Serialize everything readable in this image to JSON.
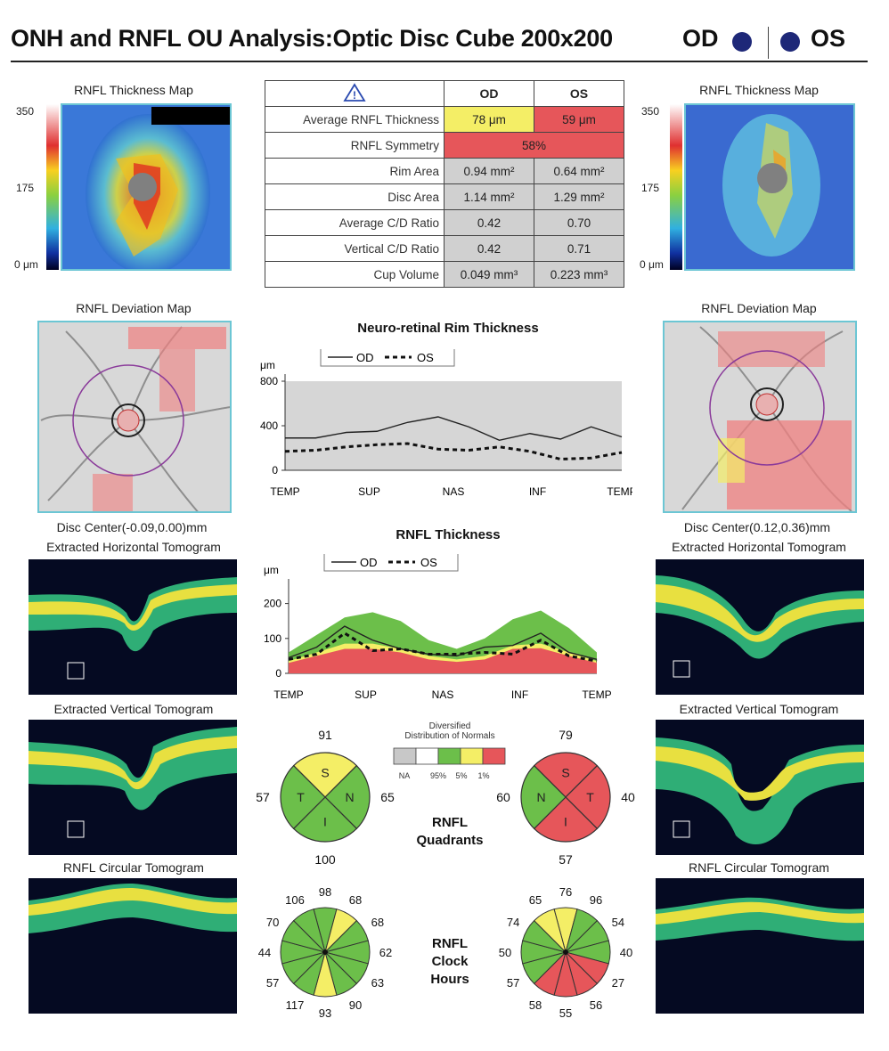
{
  "header": {
    "title": "ONH and RNFL OU Analysis:Optic Disc Cube 200x200",
    "od": "OD",
    "os": "OS"
  },
  "thickness_map": {
    "caption": "RNFL Thickness Map",
    "scale_max": "350",
    "scale_mid": "175",
    "scale_min": "0 μm",
    "scale_min_os": "0 μm"
  },
  "metrics": {
    "col_od": "OD",
    "col_os": "OS",
    "rows": [
      {
        "label": "Average RNFL Thickness",
        "od": "78 μm",
        "os": "59 μm"
      },
      {
        "label": "RNFL Symmetry",
        "merged": "58%"
      },
      {
        "label": "Rim Area",
        "od": "0.94 mm²",
        "os": "0.64 mm²"
      },
      {
        "label": "Disc Area",
        "od": "1.14 mm²",
        "os": "1.29 mm²"
      },
      {
        "label": "Average C/D Ratio",
        "od": "0.42",
        "os": "0.70"
      },
      {
        "label": "Vertical C/D Ratio",
        "od": "0.42",
        "os": "0.71"
      },
      {
        "label": "Cup Volume",
        "od": "0.049 mm³",
        "os": "0.223 mm³"
      }
    ],
    "colors": {
      "yellow": "#f4ee66",
      "red": "#e6565a",
      "gray": "#d0d0d0"
    }
  },
  "deviation_map": {
    "caption": "RNFL Deviation Map",
    "od_center": "Disc Center(-0.09,0.00)mm",
    "os_center": "Disc Center(0.12,0.36)mm"
  },
  "tomograms": {
    "horizontal": "Extracted Horizontal Tomogram",
    "vertical": "Extracted Vertical Tomogram",
    "circular": "RNFL Circular Tomogram"
  },
  "chart_data": [
    {
      "type": "line",
      "title": "Neuro-retinal Rim Thickness",
      "ylabel": "μm",
      "ylim": [
        0,
        800
      ],
      "yticks": [
        "800",
        "400",
        "0"
      ],
      "xticks": [
        "TEMP",
        "SUP",
        "NAS",
        "INF",
        "TEMP"
      ],
      "legend": {
        "od": "OD",
        "os": "OS"
      },
      "series": [
        {
          "name": "OD",
          "values": [
            290,
            290,
            340,
            350,
            430,
            480,
            390,
            270,
            330,
            280,
            390,
            300
          ]
        },
        {
          "name": "OS",
          "values": [
            170,
            180,
            210,
            230,
            240,
            190,
            180,
            210,
            170,
            100,
            110,
            160
          ]
        }
      ]
    },
    {
      "type": "area",
      "title": "RNFL Thickness",
      "ylabel": "μm",
      "ylim": [
        0,
        250
      ],
      "yticks": [
        "200",
        "100",
        "0"
      ],
      "xticks": [
        "TEMP",
        "SUP",
        "NAS",
        "INF",
        "TEMP"
      ],
      "legend": {
        "od": "OD",
        "os": "OS"
      },
      "normative": {
        "p95": [
          60,
          110,
          160,
          175,
          150,
          95,
          70,
          100,
          155,
          180,
          130,
          60
        ],
        "p5": [
          35,
          60,
          85,
          85,
          70,
          50,
          40,
          50,
          80,
          85,
          60,
          35
        ],
        "p1": [
          30,
          50,
          70,
          70,
          60,
          40,
          33,
          40,
          70,
          72,
          50,
          30
        ]
      },
      "series": [
        {
          "name": "OD",
          "values": [
            45,
            75,
            135,
            95,
            70,
            55,
            50,
            75,
            80,
            115,
            60,
            40
          ]
        },
        {
          "name": "OS",
          "values": [
            40,
            55,
            115,
            65,
            70,
            55,
            55,
            60,
            55,
            95,
            50,
            35
          ]
        }
      ]
    }
  ],
  "legend_normals": {
    "title1": "Diversified",
    "title2": "Distribution of Normals",
    "labels": [
      "NA",
      "95%",
      "5%",
      "1%"
    ],
    "colors": [
      "#c8c8c8",
      "#ffffff",
      "#6cbf4a",
      "#f4ee66",
      "#e6565a"
    ]
  },
  "quadrants": {
    "label1": "RNFL",
    "label2": "Quadrants",
    "od": {
      "S": "91",
      "N": "65",
      "I": "100",
      "T": "57",
      "letters": [
        "S",
        "N",
        "I",
        "T"
      ],
      "colors": {
        "S": "#f4ee66",
        "N": "#6cbf4a",
        "I": "#6cbf4a",
        "T": "#6cbf4a"
      }
    },
    "os": {
      "S": "79",
      "T": "40",
      "I": "57",
      "N": "60",
      "letters": [
        "S",
        "T",
        "I",
        "N"
      ],
      "colors": {
        "S": "#e6565a",
        "T": "#e6565a",
        "I": "#e6565a",
        "N": "#6cbf4a"
      }
    }
  },
  "clock_hours": {
    "label1": "RNFL",
    "label2": "Clock",
    "label3": "Hours",
    "od": {
      "values": [
        "98",
        "68",
        "68",
        "62",
        "63",
        "90",
        "93",
        "117",
        "57",
        "44",
        "70",
        "106"
      ],
      "colors": [
        "#6cbf4a",
        "#f4ee66",
        "#6cbf4a",
        "#6cbf4a",
        "#6cbf4a",
        "#6cbf4a",
        "#f4ee66",
        "#6cbf4a",
        "#6cbf4a",
        "#6cbf4a",
        "#6cbf4a",
        "#6cbf4a"
      ]
    },
    "os": {
      "values": [
        "76",
        "96",
        "54",
        "40",
        "27",
        "56",
        "55",
        "58",
        "57",
        "50",
        "74",
        "65"
      ],
      "colors": [
        "#f4ee66",
        "#6cbf4a",
        "#6cbf4a",
        "#6cbf4a",
        "#e6565a",
        "#e6565a",
        "#e6565a",
        "#e6565a",
        "#6cbf4a",
        "#6cbf4a",
        "#6cbf4a",
        "#f4ee66"
      ]
    }
  }
}
